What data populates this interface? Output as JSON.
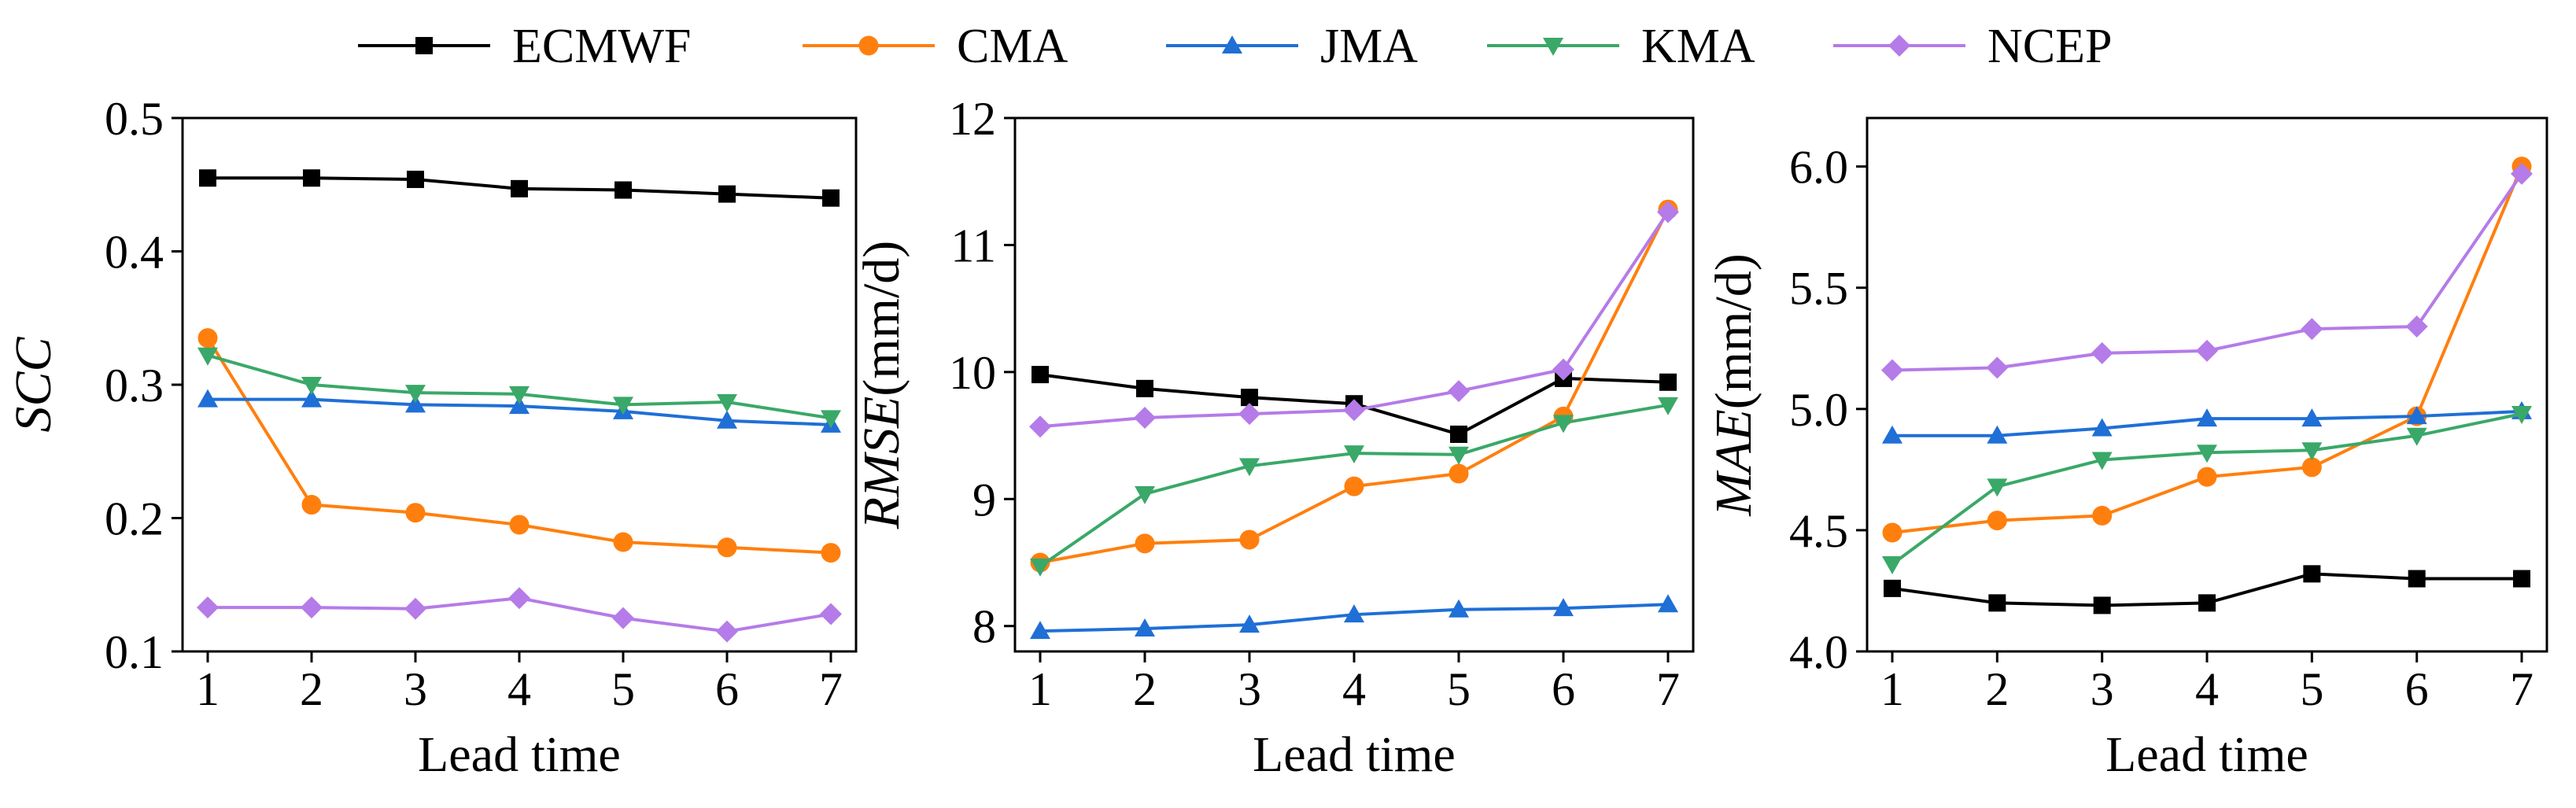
{
  "legend": [
    {
      "name": "ECMWF",
      "color": "#000000",
      "marker": "square"
    },
    {
      "name": "CMA",
      "color": "#ff7f0e",
      "marker": "circle"
    },
    {
      "name": "JMA",
      "color": "#1f6fd6",
      "marker": "triangle-up"
    },
    {
      "name": "KMA",
      "color": "#3aa868",
      "marker": "triangle-down"
    },
    {
      "name": "NCEP",
      "color": "#b57be8",
      "marker": "diamond"
    }
  ],
  "chart_data": [
    {
      "type": "line",
      "xlabel": "Lead time",
      "ylabel": "SCC",
      "ylabel_italic": true,
      "ylabel_unit": "",
      "x": [
        1,
        2,
        3,
        4,
        5,
        6,
        7
      ],
      "xticks": [
        "1",
        "2",
        "3",
        "4",
        "5",
        "6",
        "7"
      ],
      "ylim": [
        0.1,
        0.5
      ],
      "yticks": [
        "0.1",
        "0.2",
        "0.3",
        "0.4",
        "0.5"
      ],
      "series": [
        {
          "name": "ECMWF",
          "values": [
            0.455,
            0.455,
            0.454,
            0.447,
            0.446,
            0.443,
            0.44
          ]
        },
        {
          "name": "CMA",
          "values": [
            0.335,
            0.21,
            0.204,
            0.195,
            0.182,
            0.178,
            0.174
          ]
        },
        {
          "name": "JMA",
          "values": [
            0.289,
            0.289,
            0.285,
            0.284,
            0.28,
            0.273,
            0.27
          ]
        },
        {
          "name": "KMA",
          "values": [
            0.322,
            0.3,
            0.294,
            0.293,
            0.285,
            0.287,
            0.275
          ]
        },
        {
          "name": "NCEP",
          "values": [
            0.133,
            0.133,
            0.132,
            0.14,
            0.125,
            0.115,
            0.128
          ]
        }
      ]
    },
    {
      "type": "line",
      "xlabel": "Lead time",
      "ylabel": "RMSE",
      "ylabel_italic": true,
      "ylabel_unit": "(mm/d)",
      "x": [
        1,
        2,
        3,
        4,
        5,
        6,
        7
      ],
      "xticks": [
        "1",
        "2",
        "3",
        "4",
        "5",
        "6",
        "7"
      ],
      "ylim": [
        7.8,
        12.0
      ],
      "yticks": [
        "8",
        "9",
        "10",
        "11",
        "12"
      ],
      "series": [
        {
          "name": "ECMWF",
          "values": [
            9.98,
            9.87,
            9.8,
            9.75,
            9.51,
            9.95,
            9.92
          ]
        },
        {
          "name": "CMA",
          "values": [
            8.5,
            8.65,
            8.68,
            9.1,
            9.2,
            9.65,
            11.28
          ]
        },
        {
          "name": "JMA",
          "values": [
            7.96,
            7.98,
            8.01,
            8.09,
            8.13,
            8.14,
            8.17
          ]
        },
        {
          "name": "KMA",
          "values": [
            8.47,
            9.04,
            9.26,
            9.36,
            9.35,
            9.6,
            9.74
          ]
        },
        {
          "name": "NCEP",
          "values": [
            9.57,
            9.64,
            9.67,
            9.7,
            9.85,
            10.02,
            11.26
          ]
        }
      ]
    },
    {
      "type": "line",
      "xlabel": "Lead time",
      "ylabel": "MAE",
      "ylabel_italic": true,
      "ylabel_unit": "(mm/d)",
      "x": [
        1,
        2,
        3,
        4,
        5,
        6,
        7
      ],
      "xticks": [
        "1",
        "2",
        "3",
        "4",
        "5",
        "6",
        "7"
      ],
      "ylim": [
        4.0,
        6.2
      ],
      "yticks": [
        "4.0",
        "4.5",
        "5.0",
        "5.5",
        "6.0"
      ],
      "series": [
        {
          "name": "ECMWF",
          "values": [
            4.26,
            4.2,
            4.19,
            4.2,
            4.32,
            4.3,
            4.3
          ]
        },
        {
          "name": "CMA",
          "values": [
            4.49,
            4.54,
            4.56,
            4.72,
            4.76,
            4.97,
            6.0
          ]
        },
        {
          "name": "JMA",
          "values": [
            4.89,
            4.89,
            4.92,
            4.96,
            4.96,
            4.97,
            4.99
          ]
        },
        {
          "name": "KMA",
          "values": [
            4.36,
            4.68,
            4.79,
            4.82,
            4.83,
            4.89,
            4.98
          ]
        },
        {
          "name": "NCEP",
          "values": [
            5.16,
            5.17,
            5.23,
            5.24,
            5.33,
            5.34,
            5.97
          ]
        }
      ]
    }
  ]
}
